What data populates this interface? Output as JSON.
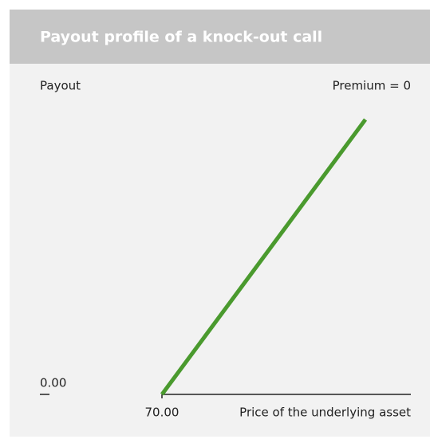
{
  "chart_data": {
    "type": "line",
    "title": "Payout profile of a knock-out call",
    "y_label": "Payout",
    "x_label": "Price of the underlying asset",
    "annotation": "Premium = 0",
    "x": [
      70,
      100
    ],
    "series": [
      {
        "color": "#4a9a2e",
        "values": [
          0,
          30
        ]
      }
    ],
    "xlim": [
      70,
      106.7
    ],
    "ylim": [
      0,
      30
    ],
    "xticks": [
      {
        "value": 70,
        "label": "70.00"
      }
    ],
    "yticks": [
      {
        "value": 0,
        "label": "0.00"
      }
    ]
  }
}
